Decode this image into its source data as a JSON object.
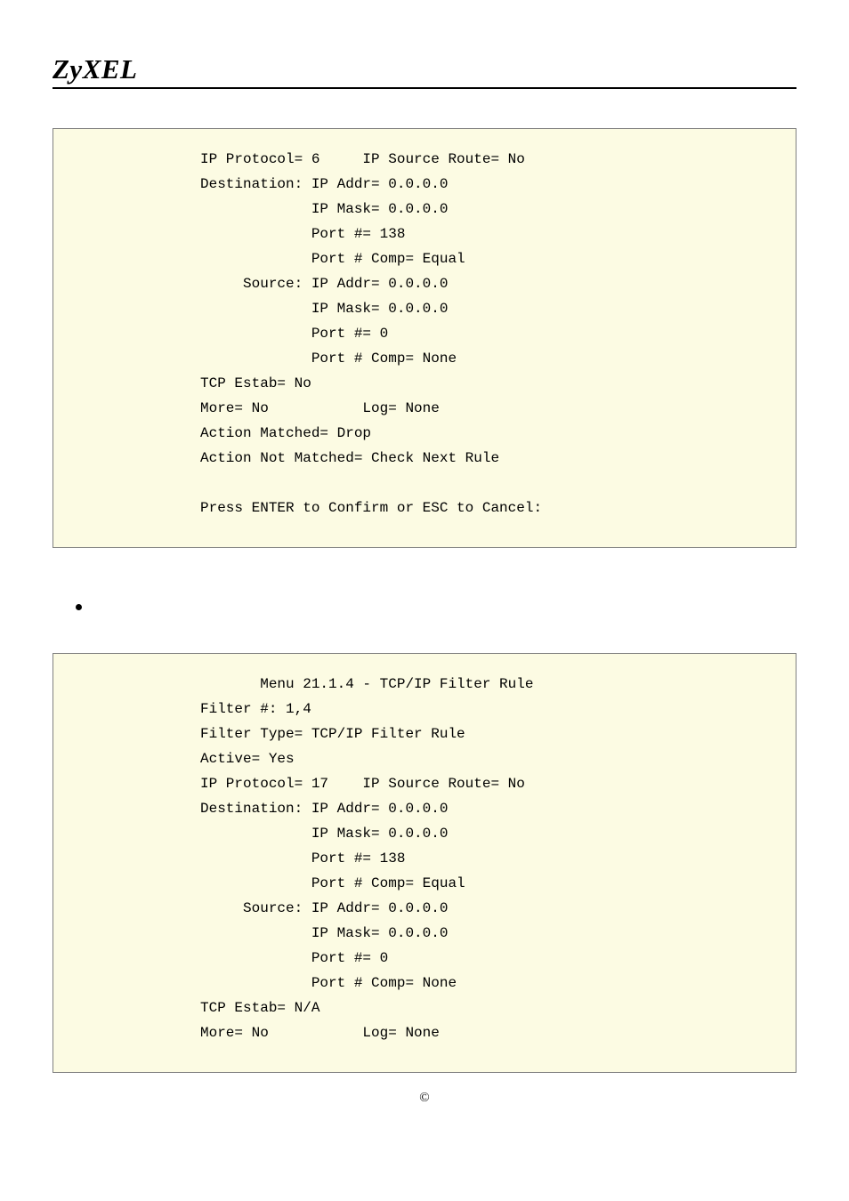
{
  "brand": "ZyXEL",
  "box1": {
    "background_color": "#fcfbe3",
    "border_color": "#808080",
    "font_family": "Courier New",
    "font_size_pt": 12,
    "text_color": "#000000",
    "lines": [
      "IP Protocol= 6     IP Source Route= No",
      "Destination: IP Addr= 0.0.0.0",
      "             IP Mask= 0.0.0.0",
      "             Port #= 138",
      "             Port # Comp= Equal",
      "     Source: IP Addr= 0.0.0.0",
      "             IP Mask= 0.0.0.0",
      "             Port #= 0",
      "             Port # Comp= None",
      "TCP Estab= No",
      "More= No           Log= None",
      "Action Matched= Drop",
      "Action Not Matched= Check Next Rule",
      "",
      "Press ENTER to Confirm or ESC to Cancel:"
    ]
  },
  "bullet_text": "",
  "box2": {
    "background_color": "#fcfbe3",
    "border_color": "#808080",
    "font_family": "Courier New",
    "font_size_pt": 12,
    "text_color": "#000000",
    "lines": [
      "       Menu 21.1.4 - TCP/IP Filter Rule",
      "Filter #: 1,4",
      "Filter Type= TCP/IP Filter Rule",
      "Active= Yes",
      "IP Protocol= 17    IP Source Route= No",
      "Destination: IP Addr= 0.0.0.0",
      "             IP Mask= 0.0.0.0",
      "             Port #= 138",
      "             Port # Comp= Equal",
      "     Source: IP Addr= 0.0.0.0",
      "             IP Mask= 0.0.0.0",
      "             Port #= 0",
      "             Port # Comp= None",
      "TCP Estab= N/A",
      "More= No           Log= None"
    ]
  },
  "footer": "©"
}
